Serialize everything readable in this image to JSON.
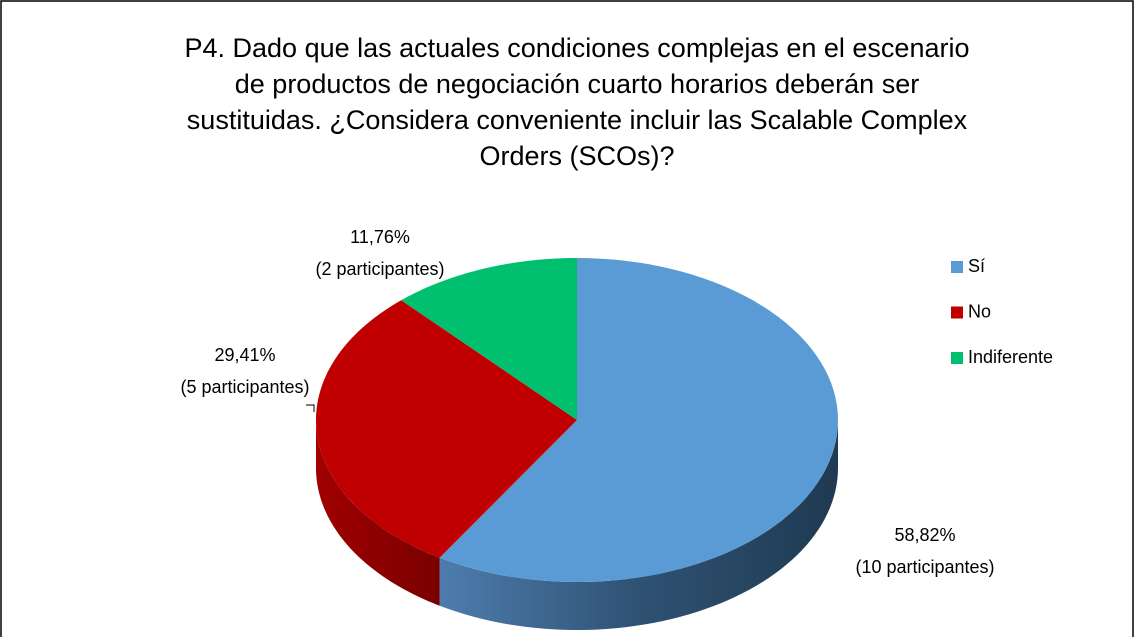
{
  "chart_data": {
    "type": "pie",
    "title": "P4. Dado que las actuales condiciones complejas en el escenario de productos de negociación cuarto horarios deberán ser sustituidas.  ¿Considera conveniente incluir las Scalable Complex Orders (SCOs)?",
    "categories": [
      "Sí",
      "No",
      "Indiferente"
    ],
    "values": [
      58.82,
      29.41,
      11.76
    ],
    "value_labels": [
      "58,82%",
      "29,41%",
      "11,76%"
    ],
    "count_labels": [
      "(10 participantes)",
      "(5 participantes)",
      "(2 participantes)"
    ],
    "colors": [
      "#5b9bd5",
      "#c00000",
      "#00c070"
    ],
    "legend": "right"
  }
}
